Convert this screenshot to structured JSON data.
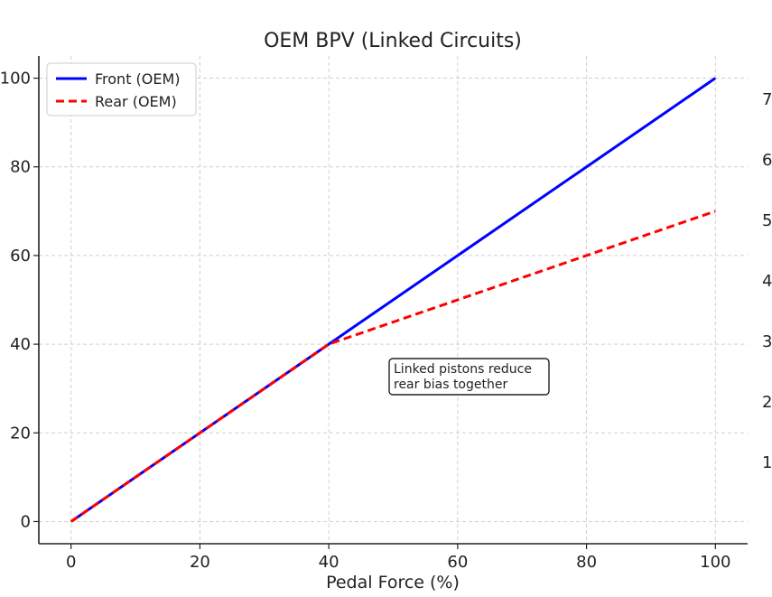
{
  "chart_data": {
    "type": "line",
    "title": "OEM BPV (Linked Circuits)",
    "xlabel": "Pedal Force (%)",
    "ylabel": "",
    "xlim": [
      -5,
      105
    ],
    "ylim": [
      -5,
      105
    ],
    "xticks": [
      0,
      20,
      40,
      60,
      80,
      100
    ],
    "yticks": [
      0,
      20,
      40,
      60,
      80,
      100
    ],
    "grid": true,
    "legend_position": "top-left",
    "series": [
      {
        "name": "Front (OEM)",
        "color": "#0000ff",
        "style": "solid",
        "x": [
          0,
          40,
          100
        ],
        "y": [
          0,
          40,
          100
        ]
      },
      {
        "name": "Rear (OEM)",
        "color": "#ff0000",
        "style": "dashed",
        "x": [
          0,
          40,
          100
        ],
        "y": [
          0,
          40,
          70
        ]
      }
    ],
    "annotations": [
      {
        "lines": [
          "Linked pistons reduce",
          "rear bias together"
        ],
        "x": 51,
        "y": 33
      }
    ],
    "right_axis_partial_labels": [
      "7",
      "6",
      "5",
      "4",
      "3",
      "2",
      "1"
    ]
  }
}
